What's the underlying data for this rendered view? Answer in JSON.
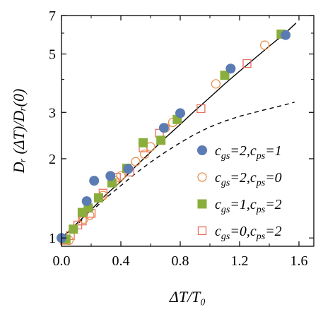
{
  "chart_data": {
    "type": "scatter",
    "title": "",
    "xlabel": "ΔT/T₀",
    "ylabel": "Dᵣ (ΔT)/Dᵣ(0)",
    "xlim": [
      0.0,
      1.7
    ],
    "ylim": [
      0.93,
      7.0
    ],
    "yscale": "log",
    "xticks": [
      0.0,
      0.4,
      0.8,
      1.2,
      1.6
    ],
    "xtick_labels": [
      "0.0",
      "0.4",
      "0.8",
      "1.2",
      "1.6"
    ],
    "yticks": [
      1,
      2,
      3,
      5,
      7
    ],
    "ytick_labels": [
      "1",
      "2",
      "3",
      "5",
      "7"
    ],
    "grid": false,
    "legend_position": "lower-right",
    "series": [
      {
        "name": "cgs=2,cps=1",
        "label_parts": [
          [
            "c",
            "gs",
            "=2,"
          ],
          [
            "c",
            "ps",
            "=1"
          ]
        ],
        "marker": "filled-circle",
        "color": "#5b7bb3",
        "x": [
          0.0,
          0.17,
          0.22,
          0.33,
          0.45,
          0.69,
          0.8,
          1.14,
          1.51
        ],
        "y": [
          1.0,
          1.38,
          1.65,
          1.72,
          1.83,
          2.62,
          2.98,
          4.4,
          5.9
        ]
      },
      {
        "name": "cgs=2,cps=0",
        "label_parts": [
          [
            "c",
            "gs",
            "=2,"
          ],
          [
            "c",
            "ps",
            "=0"
          ]
        ],
        "marker": "open-circle",
        "color": "#e8914e",
        "x": [
          0.05,
          0.15,
          0.19,
          0.28,
          0.36,
          0.4,
          0.5,
          0.56,
          0.6,
          0.7,
          0.75,
          1.04,
          1.37
        ],
        "y": [
          0.98,
          1.18,
          1.22,
          1.45,
          1.65,
          1.72,
          1.95,
          2.08,
          2.22,
          2.62,
          2.75,
          3.85,
          5.4
        ]
      },
      {
        "name": "cgs=1,cps=2",
        "label_parts": [
          [
            "c",
            "gs",
            "=1,"
          ],
          [
            "c",
            "ps",
            "=2"
          ]
        ],
        "marker": "filled-square",
        "color": "#8aae3b",
        "x": [
          0.03,
          0.08,
          0.14,
          0.18,
          0.25,
          0.34,
          0.44,
          0.55,
          0.67,
          0.78,
          1.1,
          1.48
        ],
        "y": [
          0.99,
          1.08,
          1.25,
          1.3,
          1.42,
          1.62,
          1.84,
          2.3,
          2.35,
          2.82,
          4.15,
          5.95
        ]
      },
      {
        "name": "cgs=0,cps=2",
        "label_parts": [
          [
            "c",
            "gs",
            "=0,"
          ],
          [
            "c",
            "ps",
            "=2"
          ]
        ],
        "marker": "open-square",
        "color": "#e8705e",
        "x": [
          0.02,
          0.06,
          0.11,
          0.14,
          0.2,
          0.28,
          0.37,
          0.46,
          0.55,
          0.66,
          0.94,
          1.25
        ],
        "y": [
          0.98,
          1.02,
          1.12,
          1.16,
          1.24,
          1.48,
          1.7,
          1.78,
          2.2,
          2.5,
          3.1,
          4.6
        ]
      }
    ],
    "lines": [
      {
        "name": "solid",
        "style": "solid",
        "color": "#000000",
        "x": [
          0.0,
          0.1,
          0.2,
          0.3,
          0.4,
          0.5,
          0.6,
          0.7,
          0.8,
          0.9,
          1.0,
          1.1,
          1.2,
          1.3,
          1.4,
          1.5,
          1.58
        ],
        "y": [
          1.0,
          1.13,
          1.28,
          1.46,
          1.64,
          1.87,
          2.12,
          2.4,
          2.7,
          3.05,
          3.42,
          3.85,
          4.3,
          4.8,
          5.35,
          5.95,
          6.55
        ]
      },
      {
        "name": "dashed",
        "style": "dashed",
        "color": "#000000",
        "x": [
          0.0,
          0.1,
          0.2,
          0.3,
          0.4,
          0.5,
          0.6,
          0.7,
          0.8,
          0.9,
          1.0,
          1.1,
          1.2,
          1.3,
          1.4,
          1.5,
          1.57
        ],
        "y": [
          1.0,
          1.12,
          1.26,
          1.42,
          1.58,
          1.76,
          1.94,
          2.12,
          2.3,
          2.48,
          2.64,
          2.78,
          2.9,
          3.0,
          3.1,
          3.2,
          3.28
        ]
      }
    ]
  }
}
